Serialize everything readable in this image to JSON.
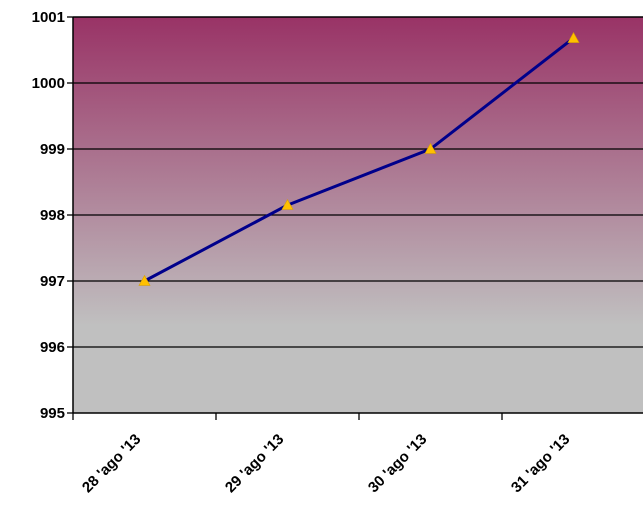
{
  "chart_data": {
    "type": "line",
    "categories": [
      "28 'ago '13",
      "29 'ago '13",
      "30 'ago '13",
      "31 'ago '13"
    ],
    "series": [
      {
        "values": [
          997.0,
          998.15,
          999.0,
          1000.68
        ]
      }
    ],
    "ylim": [
      995,
      1001
    ],
    "yticks": [
      995,
      996,
      997,
      998,
      999,
      1000,
      1001
    ],
    "grid": true,
    "legend": "none",
    "colors": {
      "line": "#00008B",
      "marker": "#FFC000",
      "bg_top": "#993366",
      "bg_bottom": "#C0C0C0",
      "grid": "#000000"
    },
    "marker": "triangle-icon"
  }
}
